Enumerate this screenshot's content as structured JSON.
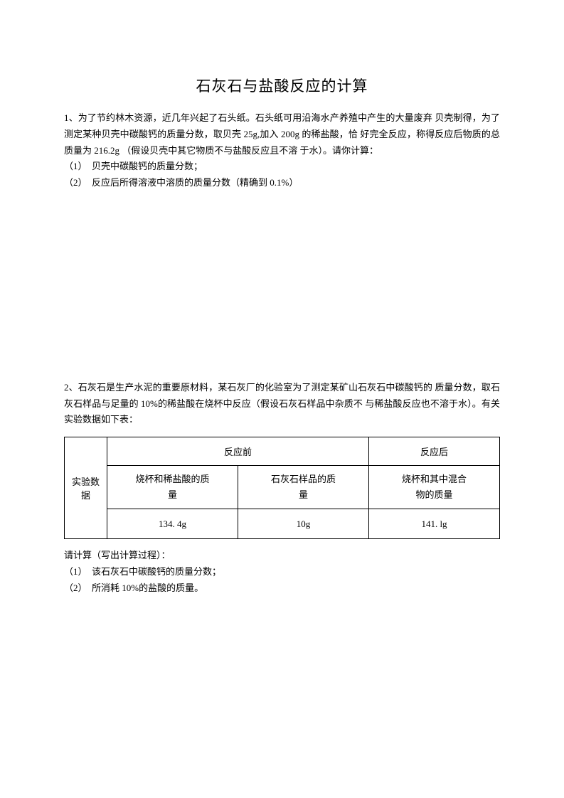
{
  "title": "石灰石与盐酸反应的计算",
  "problem1": {
    "line1": "1、为了节约林木资源，近几年兴起了石头纸。石头纸可用沿海水产养殖中产生的大量废弃 贝壳制得，为了测定某种贝壳中碳酸钙的质量分数，取贝壳 25g,加入 200g 的稀盐酸，恰 好完全反应，称得反应后物质的总质量为 216.2g （假设贝壳中其它物质不与盐酸反应且不溶 于水）。请你计算：",
    "line2": "（1）　贝壳中碳酸钙的质量分数；",
    "line3": "（2）　反应后所得溶液中溶质的质量分数（精确到 0.1%）"
  },
  "problem2": {
    "line1": "2、石灰石是生产水泥的重要原材料，某石灰厂的化验室为了测定某矿山石灰石中碳酸钙的 质量分数，取石灰石样品与足量的 10%的稀盐酸在烧杯中反应（假设石灰石样品中杂质不 与稀盐酸反应也不溶于水）。有关实验数据如下表："
  },
  "table": {
    "header_before": "反应前",
    "header_after": "反应后",
    "row_label": "实验数据",
    "sub1": "烧杯和稀盐酸的质量",
    "sub1_a": "烧杯和稀盐酸的质",
    "sub1_b": "量",
    "sub2": "石灰石样品的质量",
    "sub2_a": "石灰石样品的质",
    "sub2_b": "量",
    "sub3": "烧杯和其中混合物的质量",
    "sub3_a": "烧杯和其中混合",
    "sub3_b": "物的质量",
    "val1": "134. 4g",
    "val2": "10g",
    "val3": "141. lg"
  },
  "posttable": {
    "line1": "请计算（写出计算过程）：",
    "line2": "（1）　该石灰石中碳酸钙的质量分数；",
    "line3": "（2）　所消耗 10%的盐酸的质量。"
  },
  "colors": {
    "background": "#ffffff",
    "text": "#000000",
    "border": "#000000"
  },
  "typography": {
    "title_fontsize": 21,
    "body_fontsize": 13,
    "font_family": "SimSun"
  }
}
